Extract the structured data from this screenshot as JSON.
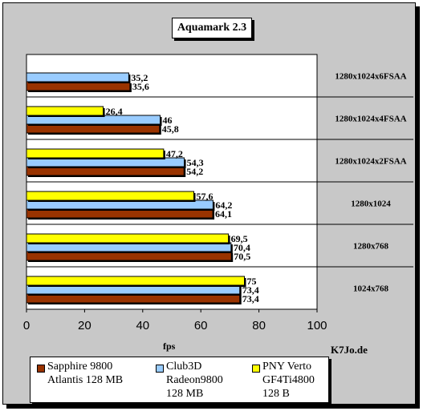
{
  "chart_data": {
    "type": "bar",
    "orientation": "horizontal",
    "title": "Aquamark 2.3",
    "xlabel": "fps",
    "ylabel": "",
    "xlim": [
      0,
      100
    ],
    "x_ticks": [
      "0",
      "20",
      "40",
      "60",
      "80",
      "100"
    ],
    "categories": [
      "1280x1024x6FSAA",
      "1280x1024x4FSAA",
      "1280x1024x2FSAA",
      "1280x1024",
      "1280x768",
      "1024x768"
    ],
    "series": [
      {
        "name": "PNY Verto GF4Ti4800 128 B",
        "color": "#ffff00",
        "values": [
          null,
          26.4,
          47.2,
          57.6,
          69.5,
          75
        ],
        "labels": [
          "",
          "26,4",
          "47,2",
          "57,6",
          "69,5",
          "75"
        ]
      },
      {
        "name": "Club3D Radeon9800 128 MB",
        "color": "#99ccff",
        "values": [
          35.2,
          46,
          54.3,
          64.2,
          70.4,
          73.4
        ],
        "labels": [
          "35,2",
          "46",
          "54,3",
          "64,2",
          "70,4",
          "73,4"
        ]
      },
      {
        "name": "Sapphire 9800 Atlantis 128 MB",
        "color": "#993300",
        "values": [
          35.6,
          45.8,
          54.2,
          64.1,
          70.5,
          73.4
        ],
        "labels": [
          "35,6",
          "45,8",
          "54,2",
          "64,1",
          "70,5",
          "73,4"
        ]
      }
    ],
    "grid": false,
    "legend_position": "bottom"
  },
  "legend": {
    "items": [
      {
        "line1": "Sapphire 9800",
        "line2": "Atlantis 128 MB",
        "color": "#993300"
      },
      {
        "line1": "Club3D",
        "line2": "Radeon9800",
        "line3": "128 MB",
        "color": "#99ccff"
      },
      {
        "line1": "PNY Verto",
        "line2": "GF4Ti4800",
        "line3": "128 B",
        "color": "#ffff00"
      }
    ]
  },
  "credit": "K7Jo.de"
}
